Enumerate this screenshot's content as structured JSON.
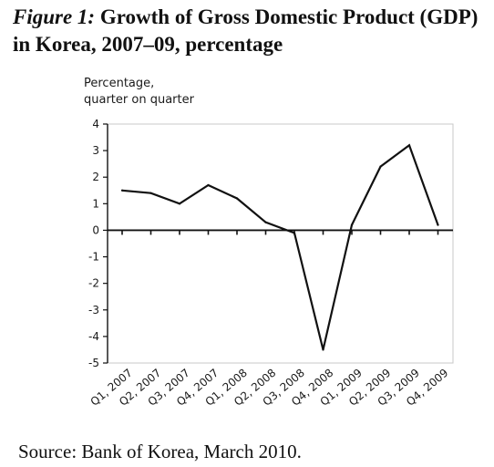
{
  "figure": {
    "label": "Figure 1:",
    "title": "Growth of Gross Domestic Product (GDP) in Korea, 2007–09, percentage"
  },
  "source": "Source: Bank of Korea, March 2010.",
  "chart_data": {
    "type": "line",
    "ylabel_lines": [
      "Percentage,",
      "quarter on quarter"
    ],
    "xlabel": "",
    "categories": [
      "Q1, 2007",
      "Q2, 2007",
      "Q3, 2007",
      "Q4, 2007",
      "Q1, 2008",
      "Q2, 2008",
      "Q3, 2008",
      "Q4, 2008",
      "Q1, 2009",
      "Q2, 2009",
      "Q3, 2009",
      "Q4, 2009"
    ],
    "series": [
      {
        "values": [
          1.5,
          1.4,
          1.0,
          1.7,
          1.2,
          0.3,
          -0.1,
          -4.5,
          0.2,
          2.4,
          3.2,
          0.2
        ]
      }
    ],
    "ylim": [
      -5,
      4
    ],
    "yticks": [
      4,
      3,
      2,
      1,
      0,
      -1,
      -2,
      -3,
      -4,
      -5
    ],
    "grid": false,
    "legend": "none",
    "colors": {
      "line": "#111111",
      "axis": "#111111",
      "frame": "#c8c8c8"
    }
  }
}
